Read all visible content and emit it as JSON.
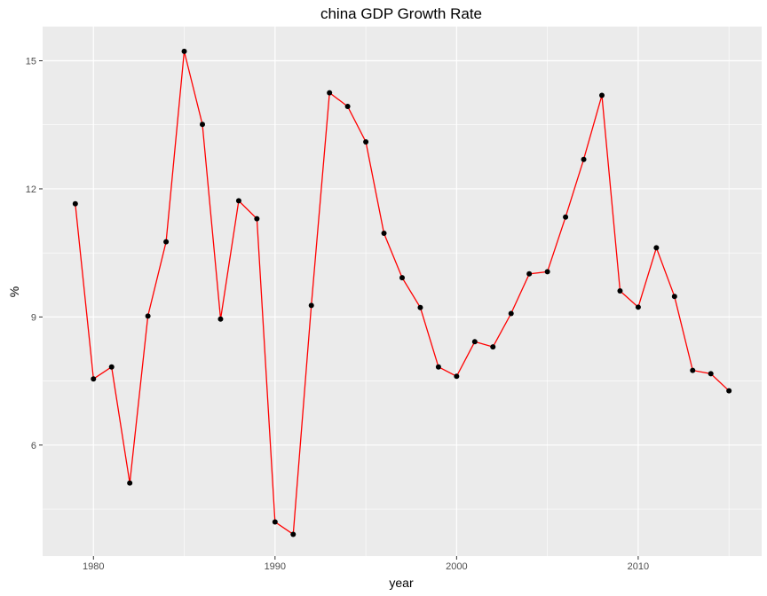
{
  "chart_data": {
    "type": "line",
    "title": "china GDP Growth Rate",
    "xlabel": "year",
    "ylabel": "%",
    "xlim": [
      1977.2,
      1981.8
    ],
    "ylim": [
      3.4,
      15.8
    ],
    "x_ticks": [
      1980,
      1990,
      2000,
      2010
    ],
    "y_ticks": [
      6,
      9,
      12,
      15
    ],
    "grid": true,
    "panel_background": "#ebebeb",
    "line_color": "#ff0000",
    "point_color": "#000000",
    "series": [
      {
        "x": [
          1979,
          1980,
          1981,
          1982,
          1983,
          1984,
          1985,
          1986,
          1987,
          1988,
          1989,
          1990,
          1991,
          1992,
          1993,
          1994,
          1995,
          1996,
          1997,
          1998,
          1999,
          2000,
          2001,
          2002,
          2003,
          2004,
          2005,
          2006,
          2007,
          2008,
          2009,
          2010,
          2011,
          2012,
          2013,
          2014,
          2015
        ],
        "values": [
          11.65,
          7.55,
          7.83,
          5.11,
          9.02,
          10.76,
          15.22,
          13.51,
          8.95,
          11.72,
          11.3,
          4.2,
          3.91,
          9.27,
          14.25,
          13.93,
          13.1,
          10.96,
          9.92,
          9.22,
          7.83,
          7.61,
          8.42,
          8.3,
          9.08,
          10.01,
          10.06,
          11.34,
          12.69,
          14.19,
          9.61,
          9.23,
          10.62,
          9.48,
          7.75,
          7.67,
          7.27
        ]
      }
    ]
  }
}
